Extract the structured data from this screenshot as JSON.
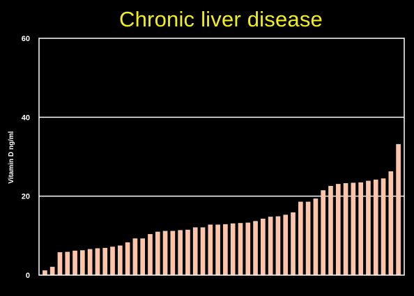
{
  "chart_data": {
    "type": "bar",
    "title": "Chronic liver disease",
    "ylabel": "Vitamin D ng/ml",
    "xlabel": "",
    "ylim": [
      0,
      60
    ],
    "yticks": [
      "0",
      "20",
      "40",
      "60"
    ],
    "grid": true,
    "legend": "none",
    "bar_color": "#fcc4a8",
    "grid_color": "#ffffff",
    "title_color": "#f2ee1c",
    "background": "#000000",
    "values": [
      1.2,
      2.1,
      5.8,
      5.9,
      6.2,
      6.3,
      6.6,
      6.8,
      6.9,
      7.2,
      7.5,
      8.3,
      9.3,
      9.3,
      10.4,
      11.0,
      11.2,
      11.2,
      11.4,
      11.5,
      12.1,
      12.1,
      12.8,
      12.8,
      12.9,
      13.1,
      13.2,
      13.3,
      13.7,
      14.3,
      14.8,
      14.9,
      15.3,
      15.9,
      18.6,
      18.6,
      19.4,
      21.5,
      22.6,
      23.1,
      23.3,
      23.4,
      23.5,
      23.9,
      24.2,
      24.5,
      26.3,
      33.2
    ]
  }
}
